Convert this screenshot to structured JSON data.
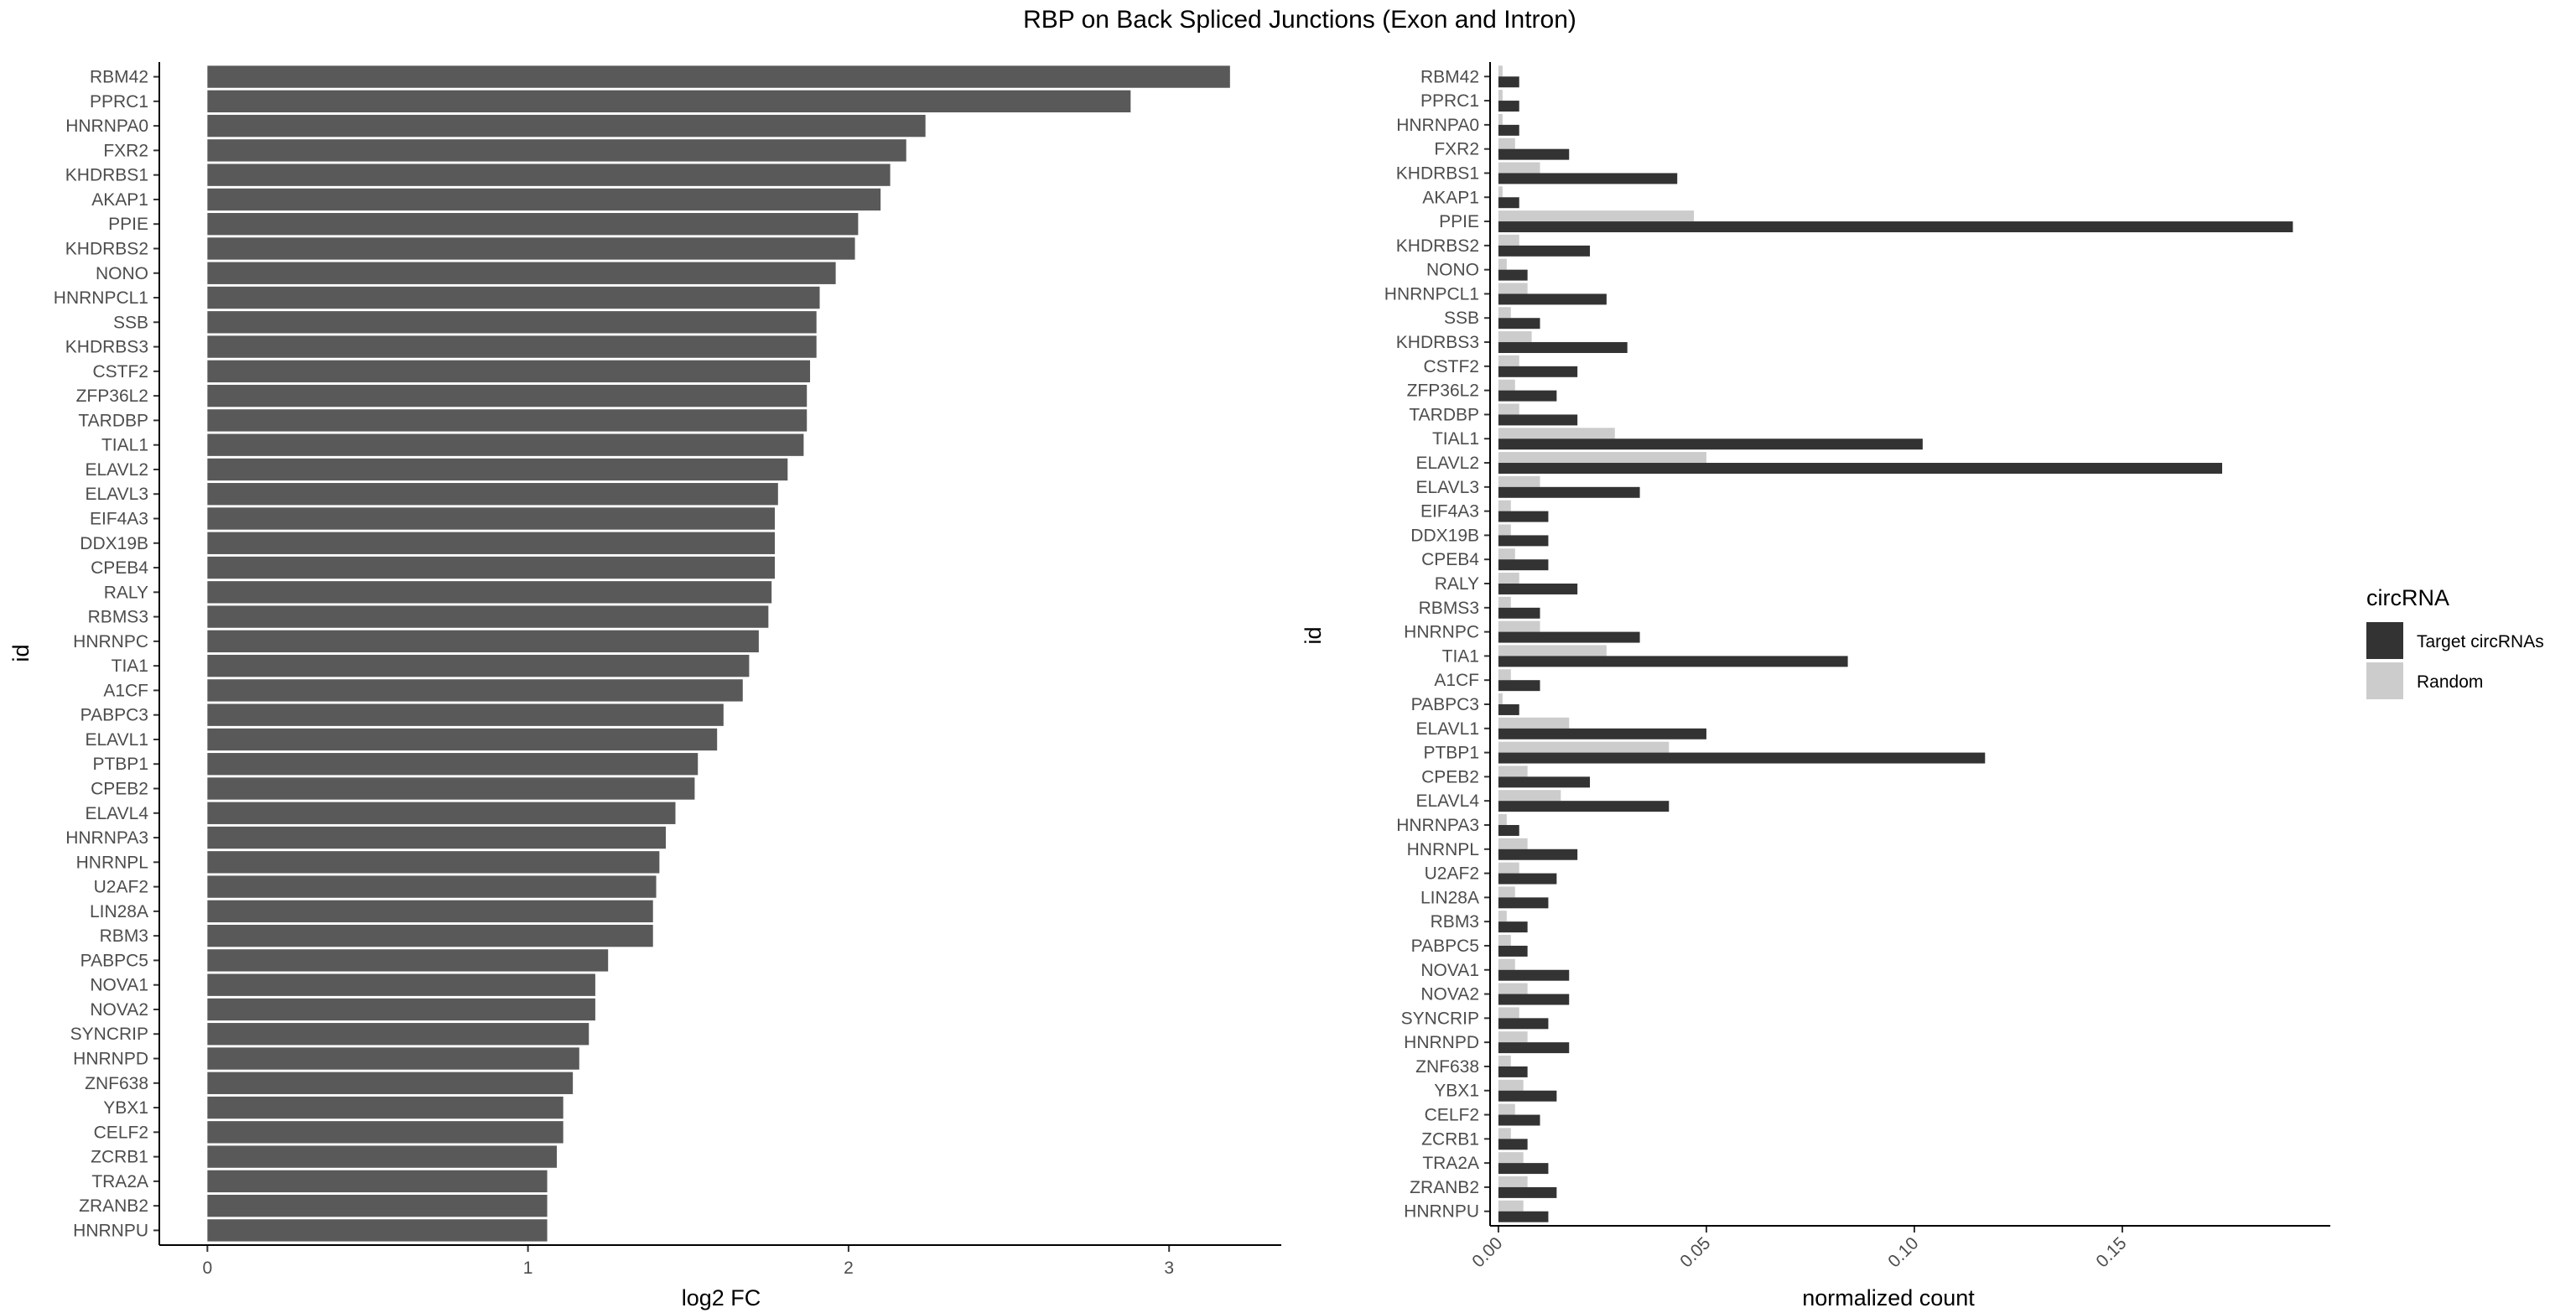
{
  "title": "RBP on Back Spliced Junctions (Exon and Intron)",
  "colors": {
    "bar_left": "#595959",
    "target": "#333333",
    "random": "#cccccc",
    "axis": "#000000"
  },
  "chart_data": [
    {
      "type": "bar",
      "orientation": "horizontal",
      "xlabel": "log2 FC",
      "ylabel": "id",
      "xlim": [
        -0.15,
        3.35
      ],
      "xticks": [
        0,
        1,
        2,
        3
      ],
      "grid": false,
      "categories": [
        "RBM42",
        "PPRC1",
        "HNRNPA0",
        "FXR2",
        "KHDRBS1",
        "AKAP1",
        "PPIE",
        "KHDRBS2",
        "NONO",
        "HNRNPCL1",
        "SSB",
        "KHDRBS3",
        "CSTF2",
        "ZFP36L2",
        "TARDBP",
        "TIAL1",
        "ELAVL2",
        "ELAVL3",
        "EIF4A3",
        "DDX19B",
        "CPEB4",
        "RALY",
        "RBMS3",
        "HNRNPC",
        "TIA1",
        "A1CF",
        "PABPC3",
        "ELAVL1",
        "PTBP1",
        "CPEB2",
        "ELAVL4",
        "HNRNPA3",
        "HNRNPL",
        "U2AF2",
        "LIN28A",
        "RBM3",
        "PABPC5",
        "NOVA1",
        "NOVA2",
        "SYNCRIP",
        "HNRNPD",
        "ZNF638",
        "YBX1",
        "CELF2",
        "ZCRB1",
        "TRA2A",
        "ZRANB2",
        "HNRNPU"
      ],
      "values": [
        3.19,
        2.88,
        2.24,
        2.18,
        2.13,
        2.1,
        2.03,
        2.02,
        1.96,
        1.91,
        1.9,
        1.9,
        1.88,
        1.87,
        1.87,
        1.86,
        1.81,
        1.78,
        1.77,
        1.77,
        1.77,
        1.76,
        1.75,
        1.72,
        1.69,
        1.67,
        1.61,
        1.59,
        1.53,
        1.52,
        1.46,
        1.43,
        1.41,
        1.4,
        1.39,
        1.39,
        1.25,
        1.21,
        1.21,
        1.19,
        1.16,
        1.14,
        1.11,
        1.11,
        1.09,
        1.06,
        1.06,
        1.06
      ]
    },
    {
      "type": "bar",
      "orientation": "horizontal",
      "xlabel": "normalized count",
      "ylabel": "id",
      "xlim": [
        -0.002,
        0.2
      ],
      "xticks": [
        0.0,
        0.05,
        0.1,
        0.15
      ],
      "xtick_labels": [
        "0.00",
        "0.05",
        "0.10",
        "0.15"
      ],
      "grid": false,
      "legend": {
        "title": "circRNA",
        "position": "right"
      },
      "categories": [
        "RBM42",
        "PPRC1",
        "HNRNPA0",
        "FXR2",
        "KHDRBS1",
        "AKAP1",
        "PPIE",
        "KHDRBS2",
        "NONO",
        "HNRNPCL1",
        "SSB",
        "KHDRBS3",
        "CSTF2",
        "ZFP36L2",
        "TARDBP",
        "TIAL1",
        "ELAVL2",
        "ELAVL3",
        "EIF4A3",
        "DDX19B",
        "CPEB4",
        "RALY",
        "RBMS3",
        "HNRNPC",
        "TIA1",
        "A1CF",
        "PABPC3",
        "ELAVL1",
        "PTBP1",
        "CPEB2",
        "ELAVL4",
        "HNRNPA3",
        "HNRNPL",
        "U2AF2",
        "LIN28A",
        "RBM3",
        "PABPC5",
        "NOVA1",
        "NOVA2",
        "SYNCRIP",
        "HNRNPD",
        "ZNF638",
        "YBX1",
        "CELF2",
        "ZCRB1",
        "TRA2A",
        "ZRANB2",
        "HNRNPU"
      ],
      "series": [
        {
          "name": "Target circRNAs",
          "color": "#333333",
          "values": [
            0.005,
            0.005,
            0.005,
            0.017,
            0.043,
            0.005,
            0.191,
            0.022,
            0.007,
            0.026,
            0.01,
            0.031,
            0.019,
            0.014,
            0.019,
            0.102,
            0.174,
            0.034,
            0.012,
            0.012,
            0.012,
            0.019,
            0.01,
            0.034,
            0.084,
            0.01,
            0.005,
            0.05,
            0.117,
            0.022,
            0.041,
            0.005,
            0.019,
            0.014,
            0.012,
            0.007,
            0.007,
            0.017,
            0.017,
            0.012,
            0.017,
            0.007,
            0.014,
            0.01,
            0.007,
            0.012,
            0.014,
            0.012
          ]
        },
        {
          "name": "Random",
          "color": "#cccccc",
          "values": [
            0.001,
            0.001,
            0.001,
            0.004,
            0.01,
            0.001,
            0.047,
            0.005,
            0.002,
            0.007,
            0.003,
            0.008,
            0.005,
            0.004,
            0.005,
            0.028,
            0.05,
            0.01,
            0.003,
            0.003,
            0.004,
            0.005,
            0.003,
            0.01,
            0.026,
            0.003,
            0.001,
            0.017,
            0.041,
            0.007,
            0.015,
            0.002,
            0.007,
            0.005,
            0.004,
            0.002,
            0.003,
            0.004,
            0.007,
            0.005,
            0.007,
            0.003,
            0.006,
            0.004,
            0.003,
            0.006,
            0.007,
            0.006
          ]
        }
      ]
    }
  ]
}
